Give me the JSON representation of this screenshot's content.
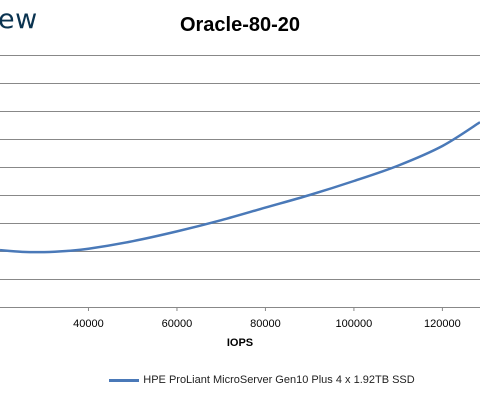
{
  "logo": {
    "text": "ew"
  },
  "chart_data": {
    "type": "line",
    "title": "Oracle-80-20",
    "xlabel": "IOPS",
    "ylabel": "",
    "xlim": [
      20000,
      128500
    ],
    "x_ticks": [
      40000,
      60000,
      80000,
      100000,
      120000
    ],
    "ylim": [
      0,
      9
    ],
    "grid": true,
    "legend_position": "bottom",
    "series": [
      {
        "name": "HPE ProLiant MicroServer Gen10 Plus 4 x 1.92TB SSD",
        "color": "#4a79b8",
        "x": [
          20000,
          25000,
          30000,
          35000,
          40000,
          50000,
          60000,
          70000,
          80000,
          90000,
          100000,
          110000,
          120000,
          128500
        ],
        "y": [
          2.03,
          1.97,
          1.96,
          2.0,
          2.08,
          2.35,
          2.7,
          3.1,
          3.55,
          4.0,
          4.5,
          5.05,
          5.75,
          6.6
        ]
      }
    ]
  }
}
